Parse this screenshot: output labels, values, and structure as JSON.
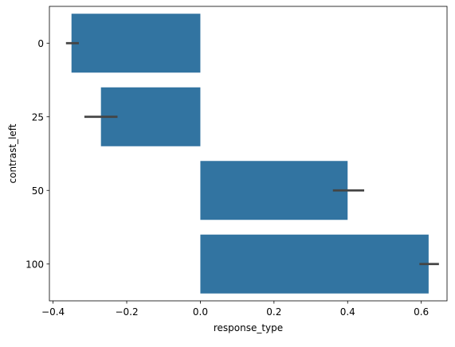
{
  "chart_data": {
    "type": "bar",
    "orientation": "horizontal",
    "categories": [
      "0",
      "25",
      "50",
      "100"
    ],
    "values": [
      -0.35,
      -0.27,
      0.4,
      0.62
    ],
    "error_bars": [
      [
        -0.365,
        -0.33
      ],
      [
        -0.315,
        -0.225
      ],
      [
        0.36,
        0.445
      ],
      [
        0.595,
        0.648
      ]
    ],
    "title": "",
    "xlabel": "response_type",
    "ylabel": "contrast_left",
    "xlim": [
      -0.41,
      0.67
    ],
    "xticks": [
      -0.4,
      -0.2,
      0.0,
      0.2,
      0.4,
      0.6
    ],
    "xtick_labels": [
      "−0.4",
      "−0.2",
      "0.0",
      "0.2",
      "0.4",
      "0.6"
    ],
    "grid": false,
    "colors": {
      "bar": "#3274a1",
      "error": "#444444",
      "axis": "#000000"
    }
  }
}
